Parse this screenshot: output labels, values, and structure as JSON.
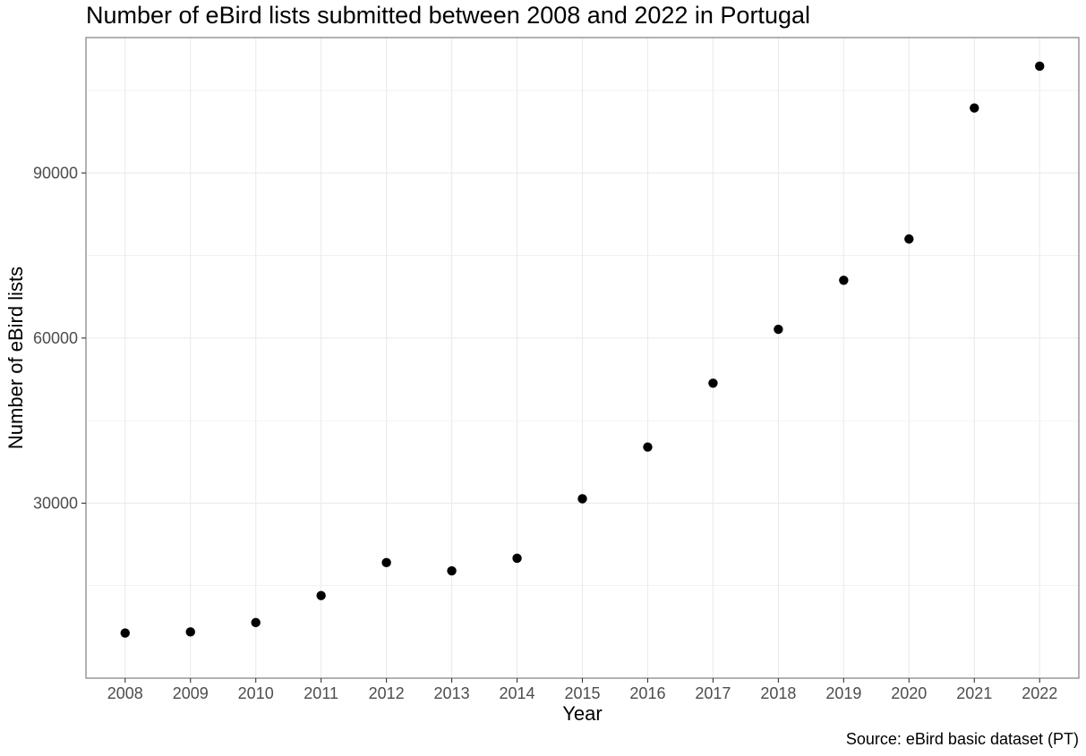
{
  "chart_data": {
    "type": "scatter",
    "title": "Number of eBird lists submitted between 2008 and 2022 in Portugal",
    "xlabel": "Year",
    "ylabel": "Number of eBird lists",
    "caption": "Source: eBird basic dataset (PT)",
    "x": [
      "2008",
      "2009",
      "2010",
      "2011",
      "2012",
      "2013",
      "2014",
      "2015",
      "2016",
      "2017",
      "2018",
      "2019",
      "2020",
      "2021",
      "2022"
    ],
    "series": [
      {
        "values": [
          6400,
          6600,
          8300,
          13200,
          19200,
          17700,
          20000,
          30800,
          40200,
          51800,
          61600,
          70500,
          78000,
          101800,
          109400
        ]
      }
    ],
    "yticks": [
      30000,
      60000,
      90000
    ],
    "ylim": [
      -1800,
      114600
    ],
    "grid": true,
    "point_color": "#000000",
    "panel_border_color": "#7f7f7f",
    "grid_color": "#ebebeb"
  }
}
